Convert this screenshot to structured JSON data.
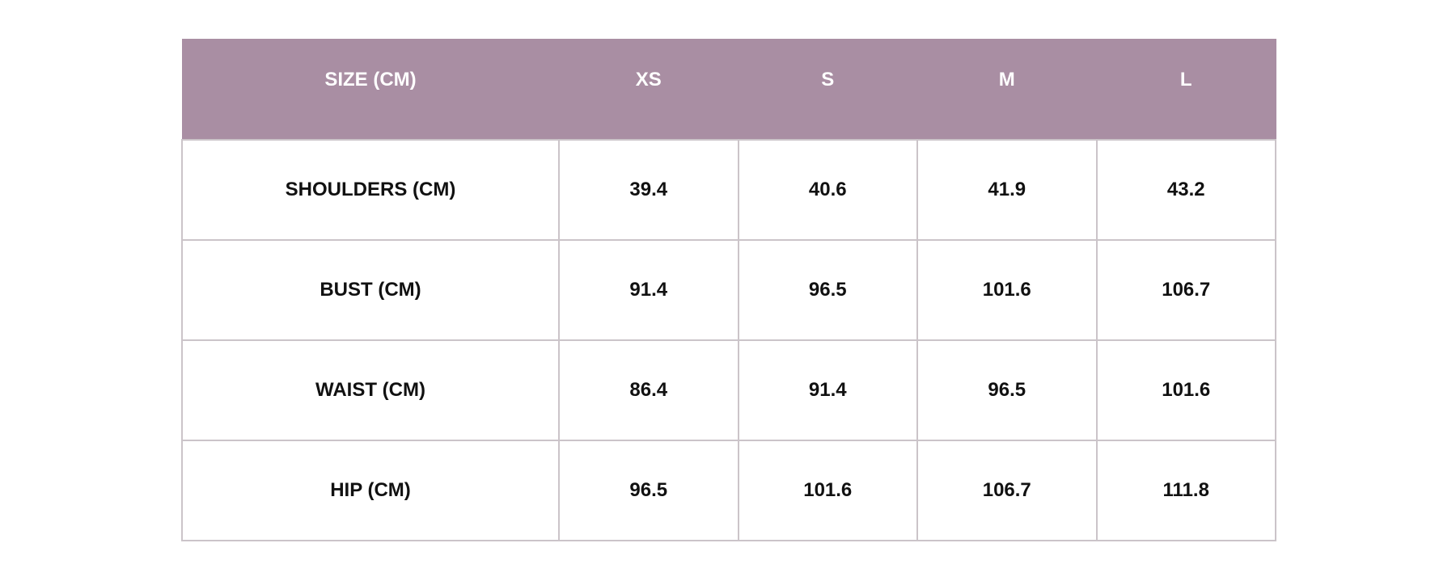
{
  "table": {
    "header": [
      "SIZE (CM)",
      "XS",
      "S",
      "M",
      "L"
    ],
    "rows": [
      [
        "SHOULDERS (CM)",
        "39.4",
        "40.6",
        "41.9",
        "43.2"
      ],
      [
        "BUST (CM)",
        "91.4",
        "96.5",
        "101.6",
        "106.7"
      ],
      [
        "WAIST (CM)",
        "86.4",
        "91.4",
        "96.5",
        "101.6"
      ],
      [
        "HIP (CM)",
        "96.5",
        "101.6",
        "106.7",
        "111.8"
      ]
    ]
  }
}
